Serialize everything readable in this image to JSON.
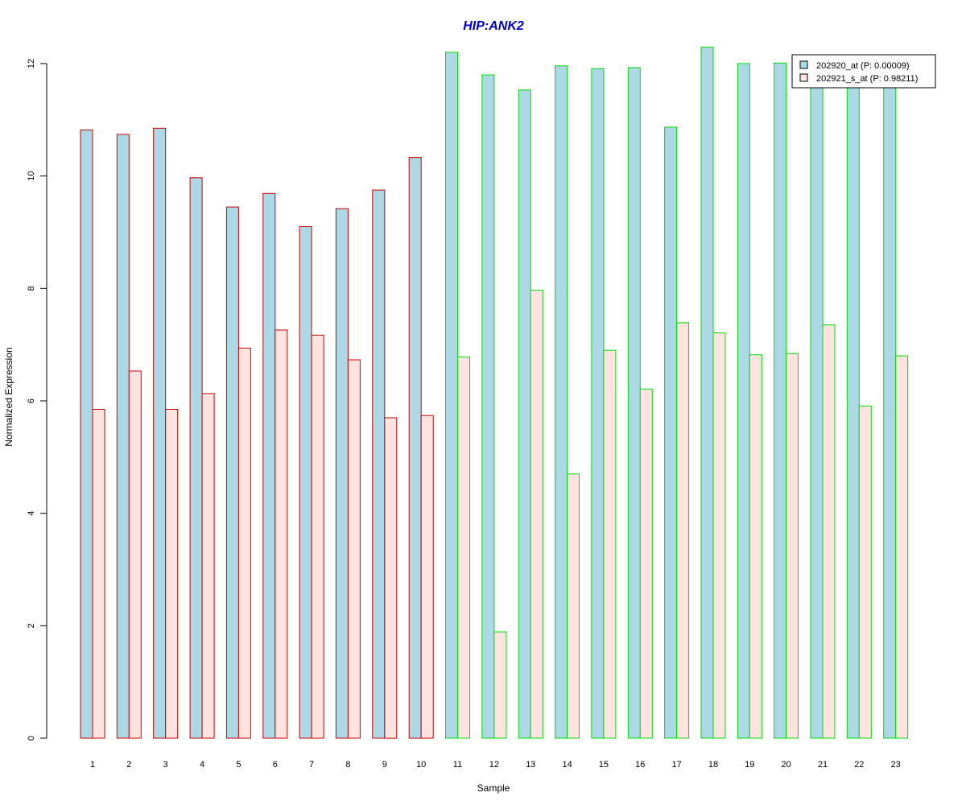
{
  "chart_data": {
    "type": "bar",
    "title": "HIP:ANK2",
    "xlabel": "Sample",
    "ylabel": "Normalized Expression",
    "categories": [
      "1",
      "2",
      "3",
      "4",
      "5",
      "6",
      "7",
      "8",
      "9",
      "10",
      "11",
      "12",
      "13",
      "14",
      "15",
      "16",
      "17",
      "18",
      "19",
      "20",
      "21",
      "22",
      "23"
    ],
    "ylim": [
      0,
      12.5
    ],
    "yticks": [
      "0",
      "2",
      "4",
      "6",
      "8",
      "10",
      "12"
    ],
    "legend_position": "top-right",
    "series": [
      {
        "name": "202920_at (P: 0.00009)",
        "fill": "#add8e6",
        "values": [
          10.82,
          10.74,
          10.85,
          9.97,
          9.45,
          9.69,
          9.1,
          9.42,
          9.75,
          10.33,
          12.2,
          11.8,
          11.53,
          11.96,
          11.91,
          11.93,
          10.87,
          12.29,
          12.0,
          12.01,
          11.6,
          11.6,
          11.6
        ]
      },
      {
        "name": "202921_s_at (P: 0.98211)",
        "fill": "#fde4e1",
        "values": [
          5.85,
          6.53,
          5.85,
          6.13,
          6.94,
          7.26,
          7.17,
          6.73,
          5.7,
          5.74,
          6.78,
          1.89,
          7.97,
          4.7,
          6.9,
          6.21,
          7.39,
          7.21,
          6.82,
          6.84,
          7.35,
          5.91,
          6.8
        ]
      }
    ],
    "group_border_colors": [
      "#cc0000",
      "#cc0000",
      "#cc0000",
      "#cc0000",
      "#cc0000",
      "#cc0000",
      "#cc0000",
      "#cc0000",
      "#cc0000",
      "#cc0000",
      "#00dd00",
      "#00dd00",
      "#00dd00",
      "#00dd00",
      "#00dd00",
      "#00dd00",
      "#00dd00",
      "#00dd00",
      "#00dd00",
      "#00dd00",
      "#00dd00",
      "#00dd00",
      "#00dd00"
    ],
    "title_color": "#0000cc",
    "grid": false
  }
}
